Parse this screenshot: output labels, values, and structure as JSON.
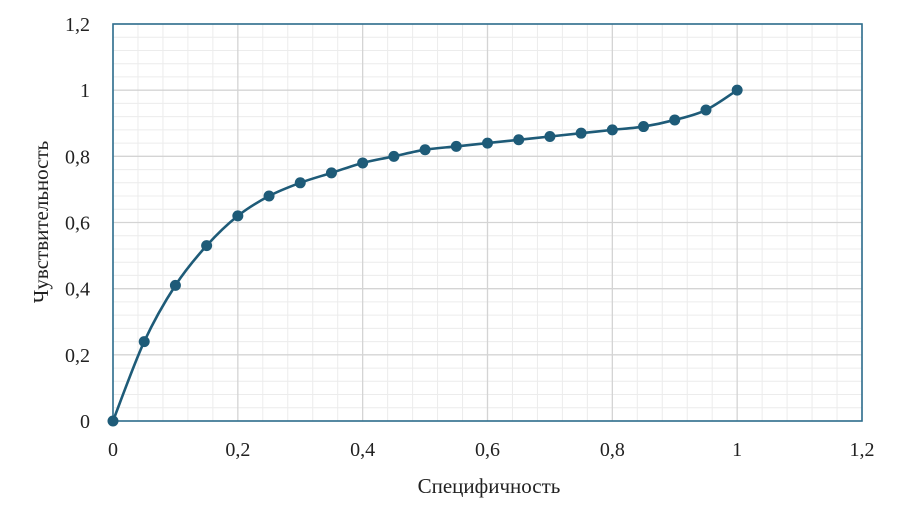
{
  "chart_data": {
    "type": "scatter",
    "title": "",
    "xlabel": "Специфичность",
    "ylabel": "Чувствительность",
    "xlim": [
      0,
      1.2
    ],
    "ylim": [
      0,
      1.2
    ],
    "x_ticks": [
      0,
      0.2,
      0.4,
      0.6,
      0.8,
      1,
      1.2
    ],
    "y_ticks": [
      0,
      0.2,
      0.4,
      0.6,
      0.8,
      1,
      1.2
    ],
    "x_tick_labels": [
      "0",
      "0,2",
      "0,4",
      "0,6",
      "0,8",
      "1",
      "1,2"
    ],
    "y_tick_labels": [
      "0",
      "0,2",
      "0,4",
      "0,6",
      "0,8",
      "1",
      "1,2"
    ],
    "grid": "major and minor",
    "legend": "none",
    "series": [
      {
        "smooth": true,
        "markers": true,
        "x": [
          0,
          0.05,
          0.1,
          0.15,
          0.2,
          0.25,
          0.3,
          0.35,
          0.4,
          0.45,
          0.5,
          0.55,
          0.6,
          0.65,
          0.7,
          0.75,
          0.8,
          0.85,
          0.9,
          0.95,
          1
        ],
        "y": [
          0,
          0.24,
          0.41,
          0.53,
          0.62,
          0.68,
          0.72,
          0.75,
          0.78,
          0.8,
          0.82,
          0.83,
          0.84,
          0.85,
          0.86,
          0.87,
          0.88,
          0.89,
          0.91,
          0.94,
          1.0
        ]
      }
    ]
  },
  "colors": {
    "series": "#1e5b78",
    "plot_border": "#2e6e8e",
    "major_grid": "#d4d4d4",
    "minor_grid": "#ececec"
  }
}
